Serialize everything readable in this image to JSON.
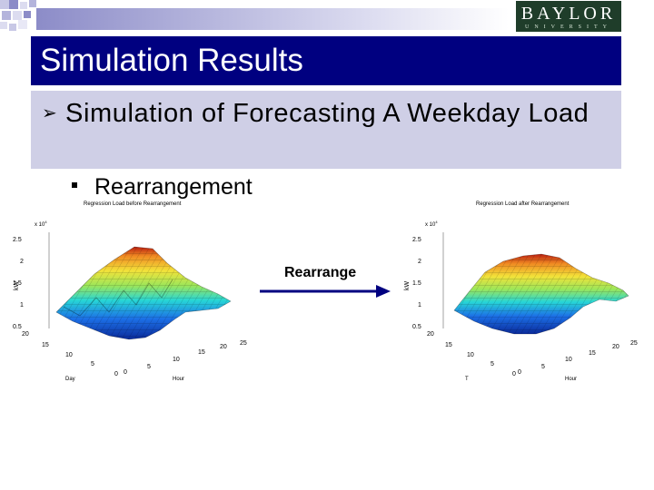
{
  "logo": {
    "name": "BAYLOR",
    "sub": "UNIVERSITY"
  },
  "slide": {
    "title": "Simulation Results",
    "bullet1": "Simulation of Forecasting A Weekday Load",
    "bullet2": "Rearrangement"
  },
  "arrow_label": "Rearrange",
  "plots": {
    "left": {
      "title": "Regression Load before Rearrangement",
      "exponent": "x 10",
      "exponent_power": "4",
      "zlabel": "kW",
      "ylabel": "Day",
      "xlabel": "Hour",
      "z_ticks": [
        "2.5",
        "2",
        "1.5",
        "1",
        "0.5"
      ],
      "y_ticks": [
        "20",
        "15",
        "10",
        "5",
        "0"
      ],
      "x_ticks": [
        "0",
        "5",
        "10",
        "15",
        "20",
        "25"
      ]
    },
    "right": {
      "title": "Regression Load after Rearrangement",
      "exponent": "x 10",
      "exponent_power": "4",
      "zlabel": "kW",
      "ylabel": "T",
      "xlabel": "Hour",
      "z_ticks": [
        "2.5",
        "2",
        "1.5",
        "1",
        "0.5"
      ],
      "y_ticks": [
        "20",
        "15",
        "10",
        "5",
        "0"
      ],
      "x_ticks": [
        "0",
        "5",
        "10",
        "15",
        "20",
        "25"
      ]
    }
  },
  "colors": {
    "title_bar": "#000080",
    "bullet_band": "#cfcfe6",
    "arrow": "#000080",
    "logo_bg": "#1f3d2a"
  }
}
